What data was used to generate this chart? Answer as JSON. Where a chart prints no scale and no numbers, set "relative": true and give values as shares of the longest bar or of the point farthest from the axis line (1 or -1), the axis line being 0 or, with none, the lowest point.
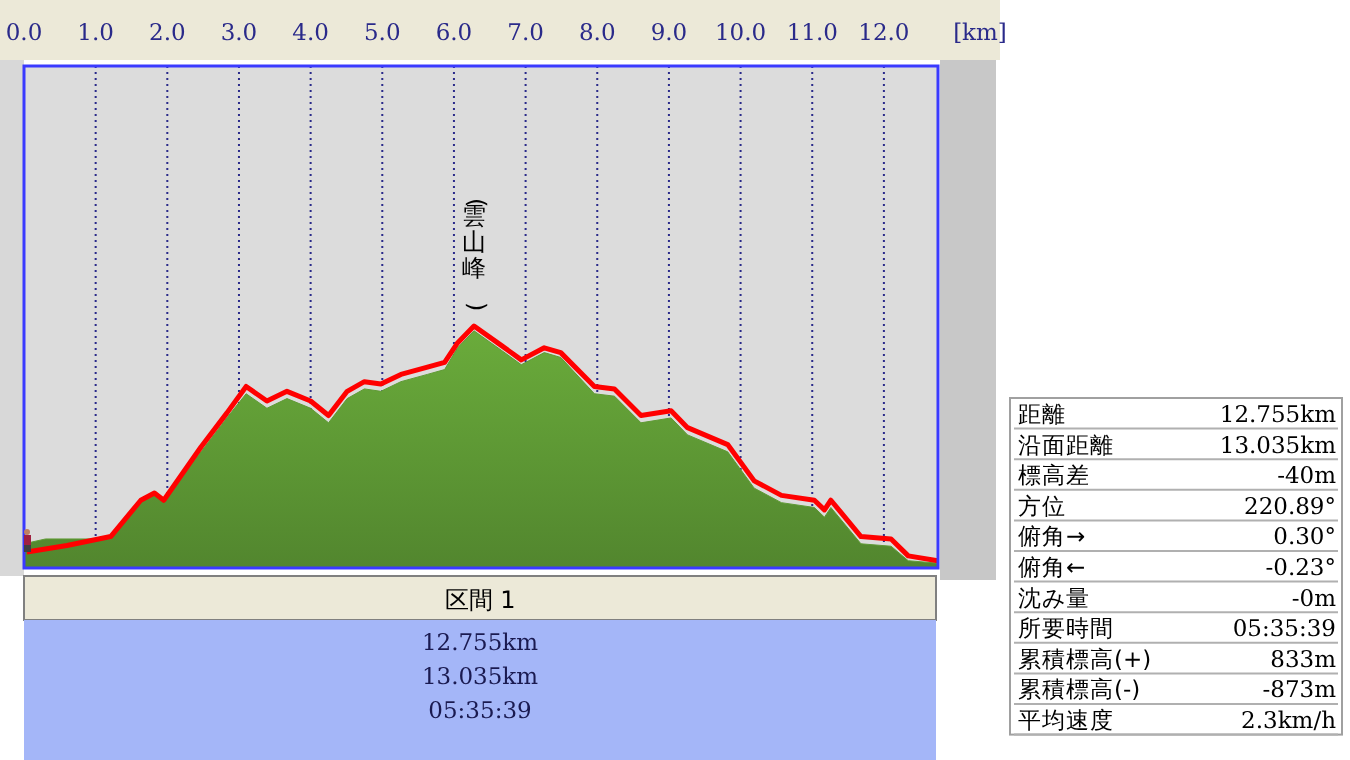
{
  "chart_data": [
    {
      "type": "area",
      "relative": true,
      "xlabel": "[km]",
      "xlim": [
        0,
        12.755
      ],
      "xticks": [
        {
          "value": 0,
          "label": "0.0"
        },
        {
          "value": 1,
          "label": "1.0"
        },
        {
          "value": 2,
          "label": "2.0"
        },
        {
          "value": 3,
          "label": "3.0"
        },
        {
          "value": 4,
          "label": "4.0"
        },
        {
          "value": 5,
          "label": "5.0"
        },
        {
          "value": 6,
          "label": "6.0"
        },
        {
          "value": 7,
          "label": "7.0"
        },
        {
          "value": 8,
          "label": "8.0"
        },
        {
          "value": 9,
          "label": "9.0"
        },
        {
          "value": 10,
          "label": "10.0"
        },
        {
          "value": 11,
          "label": "11.0"
        },
        {
          "value": 12,
          "label": "12.0"
        }
      ],
      "grid": "x",
      "tick_labels": "x",
      "annotations": [
        "(雲山峰)"
      ],
      "series": [
        {
          "type": "area",
          "color": "#5f9a35",
          "x": [
            0,
            0.3,
            0.6,
            1.0,
            1.21,
            1.63,
            1.82,
            1.95,
            2.47,
            2.83,
            3.1,
            3.39,
            3.67,
            4.0,
            4.25,
            4.51,
            4.75,
            4.98,
            5.26,
            5.63,
            5.87,
            6.05,
            6.28,
            6.66,
            6.94,
            7.26,
            7.49,
            7.96,
            8.24,
            8.61,
            9.03,
            9.26,
            9.82,
            10.19,
            10.57,
            11.03,
            11.17,
            11.26,
            11.68,
            12.1,
            12.34,
            12.755
          ],
          "values": [
            0.1,
            0.12,
            0.12,
            0.12,
            0.12,
            0.28,
            0.31,
            0.28,
            0.48,
            0.62,
            0.72,
            0.66,
            0.7,
            0.66,
            0.6,
            0.7,
            0.74,
            0.73,
            0.77,
            0.8,
            0.82,
            0.91,
            0.98,
            0.9,
            0.84,
            0.89,
            0.87,
            0.72,
            0.71,
            0.6,
            0.62,
            0.55,
            0.48,
            0.33,
            0.27,
            0.25,
            0.21,
            0.25,
            0.1,
            0.09,
            0.03,
            0.02
          ]
        },
        {
          "type": "line",
          "color": "#ff0000",
          "x": [
            0.04,
            0.6,
            1.21,
            1.63,
            1.82,
            1.95,
            2.47,
            2.83,
            3.1,
            3.39,
            3.67,
            4.0,
            4.25,
            4.51,
            4.75,
            4.98,
            5.26,
            5.63,
            5.87,
            6.05,
            6.28,
            6.66,
            6.94,
            7.26,
            7.49,
            7.96,
            8.24,
            8.61,
            9.03,
            9.26,
            9.82,
            10.19,
            10.57,
            11.03,
            11.17,
            11.26,
            11.68,
            12.1,
            12.34,
            12.75
          ],
          "values": [
            0.066,
            0.093,
            0.13,
            0.28,
            0.31,
            0.28,
            0.5,
            0.64,
            0.75,
            0.69,
            0.73,
            0.69,
            0.63,
            0.73,
            0.77,
            0.76,
            0.8,
            0.83,
            0.85,
            0.93,
            1,
            0.92,
            0.86,
            0.91,
            0.89,
            0.75,
            0.74,
            0.63,
            0.65,
            0.58,
            0.51,
            0.36,
            0.3,
            0.28,
            0.24,
            0.28,
            0.13,
            0.12,
            0.05,
            0.03
          ]
        }
      ]
    },
    {
      "type": "other",
      "title": "区間 1",
      "annotations": [
        "12.755km",
        "13.035km",
        "05:35:39"
      ]
    },
    {
      "type": "other",
      "annotations": [
        "距離",
        "12.755km",
        "沿面距離",
        "13.035km",
        "標高差",
        "-40m",
        "方位",
        "220.89°",
        "俯角→",
        "0.30°",
        "俯角←",
        "-0.23°",
        "沈み量",
        "-0m",
        "所要時間",
        "05:35:39",
        "累積標高(+)",
        "833m",
        "累積標高(-)",
        "-873m",
        "平均速度",
        "2.3km/h"
      ]
    }
  ]
}
